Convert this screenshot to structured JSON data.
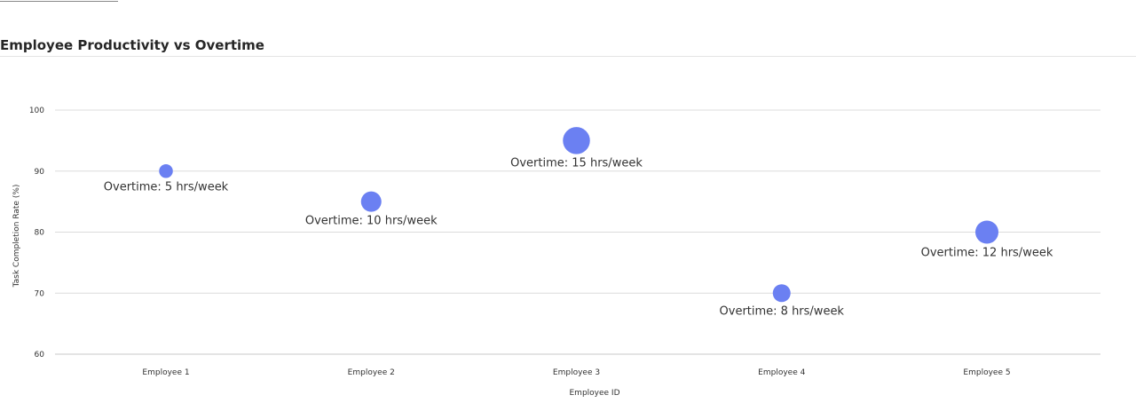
{
  "chart_data": {
    "type": "scatter",
    "title": "Employee Productivity vs Overtime",
    "xlabel": "Employee ID",
    "ylabel": "Task Completion Rate (%)",
    "categories": [
      "Employee 1",
      "Employee 2",
      "Employee 3",
      "Employee 4",
      "Employee 5"
    ],
    "ylim": [
      60,
      100
    ],
    "yticks": [
      60,
      70,
      80,
      90,
      100
    ],
    "grid": true,
    "bubble_color": "#6b80f2",
    "points": [
      {
        "x": "Employee 1",
        "y": 90,
        "overtime": 5,
        "label": "Overtime: 5 hrs/week"
      },
      {
        "x": "Employee 2",
        "y": 85,
        "overtime": 10,
        "label": "Overtime: 10 hrs/week"
      },
      {
        "x": "Employee 3",
        "y": 95,
        "overtime": 15,
        "label": "Overtime: 15 hrs/week"
      },
      {
        "x": "Employee 4",
        "y": 70,
        "overtime": 8,
        "label": "Overtime: 8 hrs/week"
      },
      {
        "x": "Employee 5",
        "y": 80,
        "overtime": 12,
        "label": "Overtime: 12 hrs/week"
      }
    ]
  }
}
